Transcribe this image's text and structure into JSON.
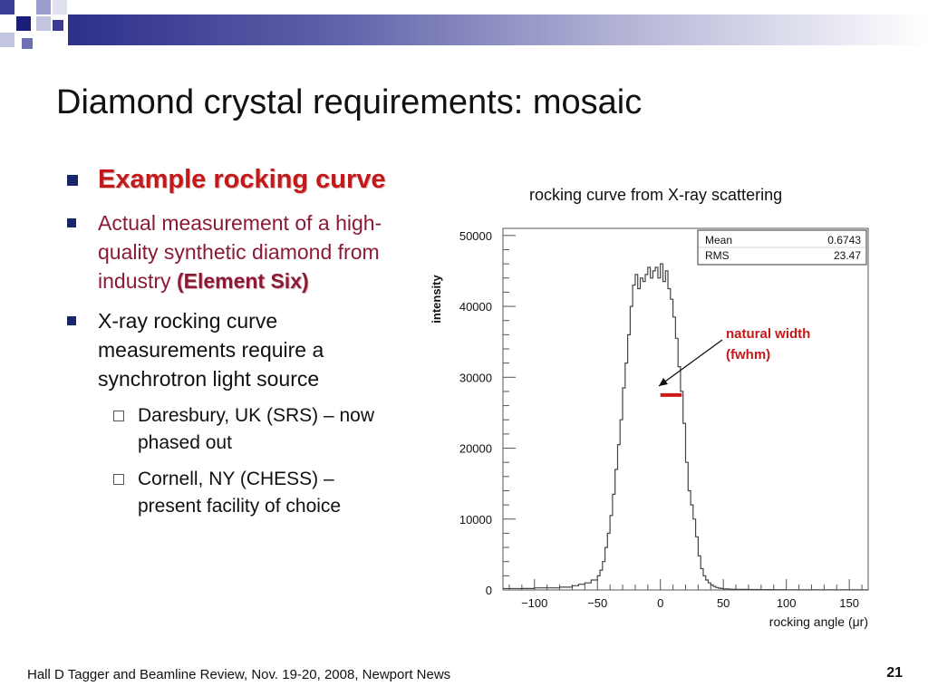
{
  "slide": {
    "title": "Diamond crystal requirements: mosaic",
    "bullets": [
      {
        "text": "Example rocking curve"
      },
      {
        "text_a": "Actual measurement of a high-quality synthetic diamond from industry",
        "text_b": "(Element Six)"
      },
      {
        "text": "X-ray rocking curve measurements require a synchrotron light source"
      }
    ],
    "subbullets": [
      {
        "text": "Daresbury, UK (SRS) – now phased out"
      },
      {
        "text": "Cornell, NY (CHESS) – present facility of choice"
      }
    ],
    "chart_caption": "rocking curve from X-ray scattering",
    "footer": "Hall D Tagger and Beamline Review, Nov. 19-20, 2008, Newport News",
    "page_number": "21",
    "colors": {
      "accent_red": "#c21a1a",
      "maroon": "#8b1a36",
      "navy": "#1a2468"
    }
  },
  "chart_data": {
    "type": "histogram",
    "xlabel": "rocking angle (μr)",
    "ylabel": "intensity",
    "xlim": [
      -125,
      165
    ],
    "ylim": [
      0,
      51000
    ],
    "x_ticks": [
      -100,
      -50,
      0,
      50,
      100,
      150
    ],
    "x_tick_labels": [
      "−100",
      "−50",
      "0",
      "50",
      "100",
      "150"
    ],
    "y_ticks": [
      0,
      10000,
      20000,
      30000,
      40000,
      50000
    ],
    "y_tick_labels": [
      "0",
      "10000",
      "20000",
      "30000",
      "40000",
      "50000"
    ],
    "stats": [
      {
        "label": "Mean",
        "value": "0.6743"
      },
      {
        "label": "RMS",
        "value": "23.47"
      }
    ],
    "annotation": {
      "text_line1": "natural width",
      "text_line2": "(fwhm)",
      "fwhm_x": [
        0,
        17
      ],
      "fwhm_y": 27500
    },
    "series": [
      {
        "x": [
          -125,
          -110,
          -100,
          -90,
          -80,
          -70,
          -65,
          -60,
          -55,
          -50,
          -48,
          -46,
          -44,
          -42,
          -40,
          -38,
          -36,
          -34,
          -32,
          -30,
          -28,
          -26,
          -24,
          -22,
          -20,
          -18,
          -16,
          -14,
          -12,
          -10,
          -8,
          -6,
          -4,
          -2,
          0,
          2,
          4,
          6,
          8,
          10,
          12,
          14,
          16,
          18,
          20,
          22,
          24,
          26,
          28,
          30,
          32,
          34,
          36,
          38,
          40,
          42,
          44,
          46,
          48,
          50,
          55,
          60,
          70,
          80,
          90,
          100,
          110,
          120,
          130,
          140,
          150,
          160,
          165
        ],
        "y": [
          200,
          200,
          300,
          300,
          400,
          600,
          800,
          1000,
          1400,
          2000,
          2800,
          4000,
          6000,
          8000,
          10500,
          13500,
          17000,
          20500,
          24000,
          28500,
          32000,
          36000,
          40000,
          43000,
          44500,
          42500,
          44000,
          43500,
          44500,
          45500,
          44000,
          45000,
          45500,
          44000,
          46000,
          43500,
          45000,
          42500,
          41000,
          38500,
          35500,
          31500,
          28000,
          23500,
          18000,
          14000,
          12000,
          10000,
          7500,
          4800,
          3000,
          2000,
          1400,
          1000,
          700,
          500,
          350,
          250,
          200,
          150,
          100,
          80,
          60,
          50,
          40,
          30,
          25,
          20,
          20,
          20,
          20,
          20,
          20
        ]
      }
    ]
  }
}
